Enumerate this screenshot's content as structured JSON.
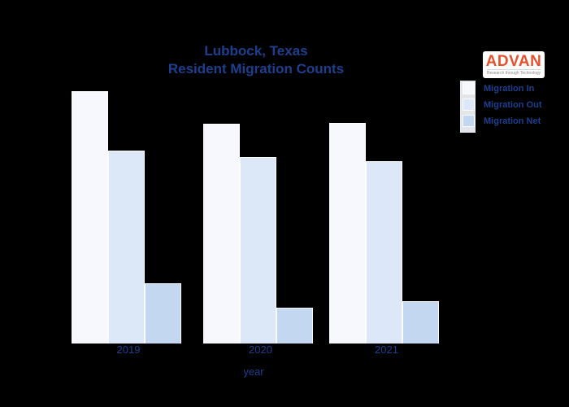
{
  "page": {
    "background": "#000000",
    "text_color": "#1e3f8f"
  },
  "title": {
    "line1": "Lubbock, Texas",
    "line2": "Resident Migration Counts"
  },
  "logo": {
    "name": "ADVAN",
    "tagline": "Research through Technology",
    "name_color": "#e8502c",
    "box_color": "#ffffff"
  },
  "legend": {
    "position": "top-right",
    "items": [
      {
        "label": "Migration In",
        "color": "#f6f8fd"
      },
      {
        "label": "Migration Out",
        "color": "#dce8f8"
      },
      {
        "label": "Migration Net",
        "color": "#c3d8f0"
      }
    ]
  },
  "x_axis": {
    "label": "year",
    "ticks": [
      "2019",
      "2020",
      "2021"
    ]
  },
  "chart_data": {
    "type": "bar",
    "title": "Lubbock, Texas Resident Migration Counts",
    "categories": [
      "2019",
      "2020",
      "2021"
    ],
    "series": [
      {
        "name": "Migration In",
        "color": "#f6f8fd",
        "values": [
          310,
          270,
          271
        ]
      },
      {
        "name": "Migration Out",
        "color": "#dce8f8",
        "values": [
          237,
          229,
          224
        ]
      },
      {
        "name": "Migration Net",
        "color": "#c3d8f0",
        "values": [
          74,
          44,
          52
        ]
      }
    ],
    "xlabel": "year",
    "ylabel": "",
    "value_unit": "relative height (y-axis not labeled in image)",
    "ylim": [
      0,
      340
    ],
    "grid": false,
    "y_axis_visible": false,
    "legend_position": "top-right",
    "background": "#000000"
  }
}
